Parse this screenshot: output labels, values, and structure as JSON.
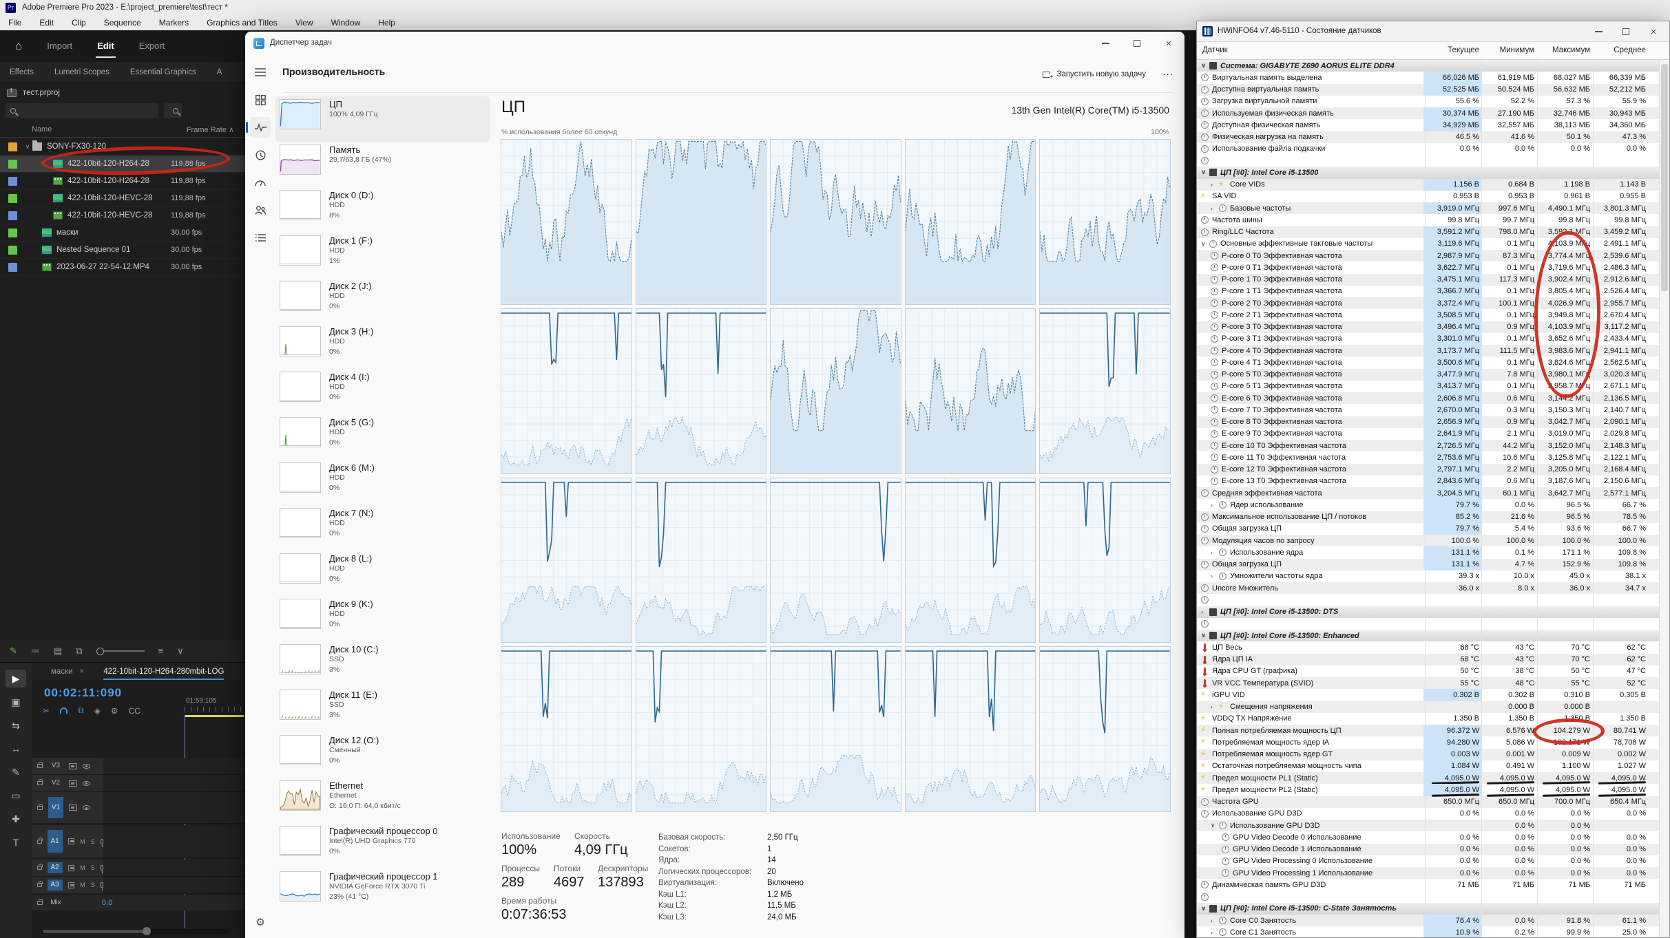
{
  "premiere": {
    "title": "Adobe Premiere Pro 2023 - E:\\project_premiere\\test\\тест *",
    "badge": "Pr",
    "menu": [
      "File",
      "Edit",
      "Clip",
      "Sequence",
      "Markers",
      "Graphics and Titles",
      "View",
      "Window",
      "Help"
    ],
    "workspace_tabs": [
      {
        "label": "Import"
      },
      {
        "label": "Edit",
        "active": 1
      },
      {
        "label": "Export"
      }
    ],
    "panel_tabs": [
      "Effects",
      "Lumetri Scopes",
      "Essential Graphics",
      "A"
    ],
    "project_name": "тест.prproj",
    "columns": {
      "name": "Name",
      "frame_rate": "Frame Rate"
    },
    "project_items": [
      {
        "chev": "∨",
        "color": "#e2a33d",
        "icon": "folder",
        "name": "SONY-FX30-120",
        "fps": ""
      },
      {
        "chev": "",
        "color": "#63c74c",
        "icon": "seq",
        "name": "422-10bit-120-H264-28",
        "fps": "119,88 fps",
        "i2": 1,
        "sel": 1
      },
      {
        "chev": "",
        "color": "#6f8fd6",
        "icon": "clip",
        "name": "422-10bit-120-H264-28",
        "fps": "119,88 fps",
        "i2": 1
      },
      {
        "chev": "",
        "color": "#63c74c",
        "icon": "seq",
        "name": "422-10bit-120-HEVC-28",
        "fps": "119,88 fps",
        "i2": 1
      },
      {
        "chev": "",
        "color": "#6f8fd6",
        "icon": "clip",
        "name": "422-10bit-120-HEVC-28",
        "fps": "119,88 fps",
        "i2": 1
      },
      {
        "chev": "",
        "color": "#63c74c",
        "icon": "seq",
        "name": "маски",
        "fps": "30,00 fps",
        "i1": 1
      },
      {
        "chev": "",
        "color": "#63c74c",
        "icon": "seq",
        "name": "Nested Sequence 01",
        "fps": "30,00 fps",
        "i1": 1
      },
      {
        "chev": "",
        "color": "#6f8fd6",
        "icon": "clip",
        "name": "2023-06-27 22-54-12.MP4",
        "fps": "30,00 fps",
        "i1": 1
      }
    ],
    "timeline": {
      "tabs": [
        {
          "label": "маски",
          "close": "×"
        },
        {
          "label": "422-10bit-120-H264-280mbit-LOG"
        }
      ],
      "timecode": "00:02:11:090",
      "ruler_label": "01:59:105",
      "video_tracks": [
        "V3",
        "V2",
        "V1"
      ],
      "audio_tracks": [
        "A1",
        "A2",
        "A3"
      ],
      "mix_label": "Mix",
      "mix_value": "0,0",
      "mute_label": "M",
      "solo_label": "S"
    }
  },
  "taskman": {
    "title": "Диспетчер задач",
    "page_title": "Производительность",
    "run_task_label": "Запустить новую задачу",
    "more_label": "...",
    "sidebar": [
      {
        "name": "ЦП",
        "sub": [
          "100% 4,09 ГГц"
        ],
        "chart": "cpu",
        "sel": 1
      },
      {
        "name": "Память",
        "sub": [
          "29,7/63,8 ГБ (47%)"
        ],
        "chart": "mem"
      },
      {
        "name": "Диск 0 (D:)",
        "sub": [
          "HDD",
          "8%"
        ],
        "chart": "disk"
      },
      {
        "name": "Диск 1 (F:)",
        "sub": [
          "HDD",
          "1%"
        ],
        "chart": "disk"
      },
      {
        "name": "Диск 2 (J:)",
        "sub": [
          "HDD",
          "0%"
        ],
        "chart": "disk"
      },
      {
        "name": "Диск 3 (H:)",
        "sub": [
          "HDD",
          "0%"
        ],
        "chart": "diskspike"
      },
      {
        "name": "Диск 4 (I:)",
        "sub": [
          "HDD",
          "0%"
        ],
        "chart": "disk"
      },
      {
        "name": "Диск 5 (G:)",
        "sub": [
          "HDD",
          "0%"
        ],
        "chart": "diskspike"
      },
      {
        "name": "Диск 6 (M:)",
        "sub": [
          "HDD",
          "0%"
        ],
        "chart": "disk"
      },
      {
        "name": "Диск 7 (N:)",
        "sub": [
          "HDD",
          "0%"
        ],
        "chart": "disk"
      },
      {
        "name": "Диск 8 (L:)",
        "sub": [
          "HDD",
          "0%"
        ],
        "chart": "disk"
      },
      {
        "name": "Диск 9 (K:)",
        "sub": [
          "HDD",
          "0%"
        ],
        "chart": "disk"
      },
      {
        "name": "Диск 10 (C:)",
        "sub": [
          "SSD",
          "3%"
        ],
        "chart": "diskssd"
      },
      {
        "name": "Диск 11 (E:)",
        "sub": [
          "SSD",
          "3%"
        ],
        "chart": "diskssd"
      },
      {
        "name": "Диск 12 (O:)",
        "sub": [
          "Сменный",
          "0%"
        ],
        "chart": "disk"
      },
      {
        "name": "Ethernet",
        "sub": [
          "Ethernet",
          "О: 16,0 П: 64,0 кбит/с"
        ],
        "chart": "eth"
      },
      {
        "name": "Графический процессор 0",
        "sub": [
          "Intel(R) UHD Graphics 770",
          "0%"
        ],
        "chart": "disk"
      },
      {
        "name": "Графический процессор 1",
        "sub": [
          "NVIDIA GeForce RTX 3070 Ti",
          "23% (41 °C)"
        ],
        "chart": "gpu"
      }
    ],
    "cpu": {
      "title": "ЦП",
      "subtitle": "13th Gen Intel(R) Core(TM) i5-13500",
      "graph_label": "% использования более 60 секунд",
      "graph_max": "100%",
      "core_graph_styles": [
        "busy",
        "busy",
        "busy",
        "busy",
        "busy",
        "pinned",
        "pinned",
        "busy",
        "busy",
        "pinned",
        "pinned",
        "pinned",
        "pinned",
        "pinned",
        "pinned",
        "pinned",
        "pinned",
        "pinned",
        "pinned",
        "pinned"
      ],
      "stats": [
        {
          "label": "Использование",
          "value": "100%"
        },
        {
          "label": "Скорость",
          "value": "4,09 ГГц"
        },
        {
          "label": "Процессы",
          "value": "289"
        },
        {
          "label": "Потоки",
          "value": "4697"
        },
        {
          "label": "Дескрипторы",
          "value": "137893"
        },
        {
          "label": "Время работы",
          "value": "0:07:36:53"
        }
      ],
      "details": [
        {
          "label": "Базовая скорость:",
          "value": "2,50 ГГц"
        },
        {
          "label": "Сокетов:",
          "value": "1"
        },
        {
          "label": "Ядра:",
          "value": "14"
        },
        {
          "label": "Логических процессоров:",
          "value": "20"
        },
        {
          "label": "Виртуализация:",
          "value": "Включено"
        },
        {
          "label": "Кэш L1:",
          "value": "1,2 МБ"
        },
        {
          "label": "Кэш L2:",
          "value": "11,5 МБ"
        },
        {
          "label": "Кэш L3:",
          "value": "24,0 МБ"
        }
      ]
    }
  },
  "hwinfo": {
    "title": "HWiNFO64 v7.46-5110 - Состояние датчиков",
    "columns": [
      "Датчик",
      "Текущее",
      "Минимум",
      "Максимум",
      "Среднее"
    ],
    "rows": [
      {
        "sec": 1,
        "ch": "∨",
        "l": "Система: GIGABYTE Z690 AORUS ELITE DDR4"
      },
      {
        "l": "Виртуальная память выделена",
        "c": "66,026 МБ",
        "m": "61,919 МБ",
        "x": "68,027 МБ",
        "a": "66,339 МБ",
        "hl": 1
      },
      {
        "l": "Доступна виртуальная память",
        "c": "52,525 МБ",
        "m": "50,524 МБ",
        "x": "56,632 МБ",
        "a": "52,212 МБ",
        "hl": 1
      },
      {
        "l": "Загрузка виртуальной памяти",
        "c": "55.6 %",
        "m": "52.2 %",
        "x": "57.3 %",
        "a": "55.9 %"
      },
      {
        "l": "Используемая физическая память",
        "c": "30,374 МБ",
        "m": "27,190 МБ",
        "x": "32,746 МБ",
        "a": "30,943 МБ",
        "hl": 1
      },
      {
        "l": "Доступная физическая память",
        "c": "34,929 МБ",
        "m": "32,557 МБ",
        "x": "38,113 МБ",
        "a": "34,360 МБ",
        "hl": 1
      },
      {
        "l": "Физическая нагрузка на память",
        "c": "46.5 %",
        "m": "41.6 %",
        "x": "50.1 %",
        "a": "47.3 %"
      },
      {
        "l": "Использование файла подкачки",
        "c": "0.0 %",
        "m": "0.0 %",
        "x": "0.0 %",
        "a": "0.0 %"
      },
      {
        "gap": 1
      },
      {
        "sec": 1,
        "ch": "∨",
        "l": "ЦП [#0]: Intel Core i5-13500"
      },
      {
        "l": "Core VIDs",
        "ch": "›",
        "b": 1,
        "i1": 1,
        "c": "1.156 В",
        "m": "0.684 В",
        "x": "1.198 В",
        "a": "1.143 В",
        "hl": 1
      },
      {
        "l": "SA VID",
        "b": 1,
        "c": "0.953 В",
        "m": "0.953 В",
        "x": "0.961 В",
        "a": "0.955 В"
      },
      {
        "l": "Базовые частоты",
        "ch": "›",
        "i1": 1,
        "c": "3,919.0 МГц",
        "m": "997.6 МГц",
        "x": "4,490.1 МГц",
        "a": "3,801.3 МГц",
        "hl": 1
      },
      {
        "l": "Частота шины",
        "c": "99.8 МГц",
        "m": "99.7 МГц",
        "x": "99.8 МГц",
        "a": "99.8 МГц"
      },
      {
        "l": "Ring/LLC Частота",
        "c": "3,591.2 МГц",
        "m": "798.0 МГц",
        "x": "3,592.1 МГц",
        "a": "3,459.2 МГц",
        "hl": 1
      },
      {
        "l": "Основные эффективные тактовые частоты",
        "ch": "∨",
        "c": "3,119.6 МГц",
        "m": "0.1 МГц",
        "x": "4,103.9 МГц",
        "a": "2,491.1 МГц",
        "hl": 1
      },
      {
        "l": "P-core 0 T0 Эффективная частота",
        "i1": 1,
        "c": "2,987.9 МГц",
        "m": "87.3 МГц",
        "x": "3,774.4 МГц",
        "a": "2,539.6 МГц",
        "hl": 1
      },
      {
        "l": "P-core 0 T1 Эффективная частота",
        "i1": 1,
        "c": "3,622.7 МГц",
        "m": "0.1 МГц",
        "x": "3,719.6 МГц",
        "a": "2,486.3 МГц",
        "hl": 1
      },
      {
        "l": "P-core 1 T0 Эффективная частота",
        "i1": 1,
        "c": "3,475.1 МГц",
        "m": "117.3 МГц",
        "x": "3,902.4 МГц",
        "a": "2,912.6 МГц",
        "hl": 1
      },
      {
        "l": "P-core 1 T1 Эффективная частота",
        "i1": 1,
        "c": "3,366.7 МГц",
        "m": "0.1 МГц",
        "x": "3,805.4 МГц",
        "a": "2,526.4 МГц",
        "hl": 1
      },
      {
        "l": "P-core 2 T0 Эффективная частота",
        "i1": 1,
        "c": "3,372.4 МГц",
        "m": "100.1 МГц",
        "x": "4,026.9 МГц",
        "a": "2,955.7 МГц",
        "hl": 1
      },
      {
        "l": "P-core 2 T1 Эффективная частота",
        "i1": 1,
        "c": "3,508.5 МГц",
        "m": "0.1 МГц",
        "x": "3,949.8 МГц",
        "a": "2,670.4 МГц",
        "hl": 1
      },
      {
        "l": "P-core 3 T0 Эффективная частота",
        "i1": 1,
        "c": "3,496.4 МГц",
        "m": "0.9 МГц",
        "x": "4,103.9 МГц",
        "a": "3,117.2 МГц",
        "hl": 1
      },
      {
        "l": "P-core 3 T1 Эффективная частота",
        "i1": 1,
        "c": "3,301.0 МГц",
        "m": "0.1 МГц",
        "x": "3,652.6 МГц",
        "a": "2,433.4 МГц",
        "hl": 1
      },
      {
        "l": "P-core 4 T0 Эффективная частота",
        "i1": 1,
        "c": "3,173.7 МГц",
        "m": "111.5 МГц",
        "x": "3,983.6 МГц",
        "a": "2,941.1 МГц",
        "hl": 1
      },
      {
        "l": "P-core 4 T1 Эффективная частота",
        "i1": 1,
        "c": "3,500.6 МГц",
        "m": "0.1 МГц",
        "x": "3,824.6 МГц",
        "a": "2,562.5 МГц",
        "hl": 1
      },
      {
        "l": "P-core 5 T0 Эффективная частота",
        "i1": 1,
        "c": "3,477.9 МГц",
        "m": "7.8 МГц",
        "x": "3,980.1 МГц",
        "a": "3,020.3 МГц",
        "hl": 1
      },
      {
        "l": "P-core 5 T1 Эффективная частота",
        "i1": 1,
        "c": "3,413.7 МГц",
        "m": "0.1 МГц",
        "x": "3,958.7 МГц",
        "a": "2,671.1 МГц",
        "hl": 1
      },
      {
        "l": "E-core 6 T0 Эффективная частота",
        "i1": 1,
        "c": "2,606.8 МГц",
        "m": "0.6 МГц",
        "x": "3,144.2 МГц",
        "a": "2,136.5 МГц",
        "hl": 1
      },
      {
        "l": "E-core 7 T0 Эффективная частота",
        "i1": 1,
        "c": "2,670.0 МГц",
        "m": "0.3 МГц",
        "x": "3,150.3 МГц",
        "a": "2,140.7 МГц",
        "hl": 1
      },
      {
        "l": "E-core 8 T0 Эффективная частота",
        "i1": 1,
        "c": "2,656.9 МГц",
        "m": "0.9 МГц",
        "x": "3,042.7 МГц",
        "a": "2,090.1 МГц",
        "hl": 1
      },
      {
        "l": "E-core 9 T0 Эффективная частота",
        "i1": 1,
        "c": "2,641.9 МГц",
        "m": "2.1 МГц",
        "x": "3,019.0 МГц",
        "a": "2,029.8 МГц",
        "hl": 1
      },
      {
        "l": "E-core 10 T0 Эффективная частота",
        "i1": 1,
        "c": "2,726.5 МГц",
        "m": "44.2 МГц",
        "x": "3,152.0 МГц",
        "a": "2,148.3 МГц",
        "hl": 1
      },
      {
        "l": "E-core 11 T0 Эффективная частота",
        "i1": 1,
        "c": "2,753.6 МГц",
        "m": "10.6 МГц",
        "x": "3,125.8 МГц",
        "a": "2,122.1 МГц",
        "hl": 1
      },
      {
        "l": "E-core 12 T0 Эффективная частота",
        "i1": 1,
        "c": "2,797.1 МГц",
        "m": "2.2 МГц",
        "x": "3,205.0 МГц",
        "a": "2,168.4 МГц",
        "hl": 1
      },
      {
        "l": "E-core 13 T0 Эффективная частота",
        "i1": 1,
        "c": "2,843.6 МГц",
        "m": "0.6 МГц",
        "x": "3,187.6 МГц",
        "a": "2,150.6 МГц",
        "hl": 1
      },
      {
        "l": "Средняя эффективная частота",
        "c": "3,204.5 МГц",
        "m": "60.1 МГц",
        "x": "3,642.7 МГц",
        "a": "2,577.1 МГц",
        "hl": 1
      },
      {
        "l": "Ядер использование",
        "ch": "›",
        "i1": 1,
        "c": "79.7 %",
        "m": "0.0 %",
        "x": "96.5 %",
        "a": "66.7 %",
        "hl": 1
      },
      {
        "l": "Максимальное использование ЦП / потоков",
        "c": "85.2 %",
        "m": "21.6 %",
        "x": "96.5 %",
        "a": "78.5 %",
        "hl": 1
      },
      {
        "l": "Общая загрузка ЦП",
        "c": "79.7 %",
        "m": "5.4 %",
        "x": "93.6 %",
        "a": "66.7 %",
        "hl": 1
      },
      {
        "l": "Модуляция часов по запросу",
        "c": "100.0 %",
        "m": "100.0 %",
        "x": "100.0 %",
        "a": "100.0 %"
      },
      {
        "l": "Использование ядра",
        "ch": "›",
        "i1": 1,
        "c": "131.1 %",
        "m": "0.1 %",
        "x": "171.1 %",
        "a": "109.8 %",
        "hl": 1
      },
      {
        "l": "Общая загрузка ЦП",
        "c": "131.1 %",
        "m": "4.7 %",
        "x": "152.9 %",
        "a": "109.8 %",
        "hl": 1
      },
      {
        "l": "Умножители частоты ядра",
        "ch": "›",
        "i1": 1,
        "c": "39.3 x",
        "m": "10.0 x",
        "x": "45.0 x",
        "a": "38.1 x"
      },
      {
        "l": "Uncore Множитель",
        "c": "36.0 x",
        "m": "8.0 x",
        "x": "36.0 x",
        "a": "34.7 x"
      },
      {
        "gap": 1
      },
      {
        "sec": 1,
        "ch": "›",
        "l": "ЦП [#0]: Intel Core i5-13500: DTS"
      },
      {
        "gap": 1
      },
      {
        "sec": 1,
        "ch": "∨",
        "l": "ЦП [#0]: Intel Core i5-13500: Enhanced"
      },
      {
        "l": "ЦП Весь",
        "t": 1,
        "c": "68 °C",
        "m": "43 °C",
        "x": "70 °C",
        "a": "62 °C"
      },
      {
        "l": "Ядра ЦП IA",
        "t": 1,
        "c": "68 °C",
        "m": "43 °C",
        "x": "70 °C",
        "a": "62 °C"
      },
      {
        "l": "Ядра CPU GT (графика)",
        "t": 1,
        "c": "50 °C",
        "m": "38 °C",
        "x": "50 °C",
        "a": "47 °C"
      },
      {
        "l": "VR VCC Температура (SVID)",
        "t": 1,
        "c": "55 °C",
        "m": "48 °C",
        "x": "55 °C",
        "a": "52 °C"
      },
      {
        "l": "iGPU VID",
        "b": 1,
        "c": "0.302 В",
        "m": "0.302 В",
        "x": "0.310 В",
        "a": "0.305 В",
        "hl": 1
      },
      {
        "l": "Смещения напряжения",
        "ch": "›",
        "b": 1,
        "i1": 1,
        "c": "",
        "m": "0.000 В",
        "x": "0.000 В",
        "a": ""
      },
      {
        "l": "VDDQ TX Напряжение",
        "b": 1,
        "c": "1.350 В",
        "m": "1.350 В",
        "x": "1.350 В",
        "a": "1.350 В"
      },
      {
        "l": "Полная потребляемая мощность ЦП",
        "b": 1,
        "c": "96.372 W",
        "m": "6.576 W",
        "x": "104.279 W",
        "a": "80.741 W",
        "hl": 1
      },
      {
        "l": "Потребляемая мощность ядер IA",
        "b": 1,
        "c": "94.280 W",
        "m": "5.086 W",
        "x": "102.171 W",
        "a": "78.708 W",
        "hl": 1
      },
      {
        "l": "Потребляемая мощность ядер GT",
        "b": 1,
        "c": "0.003 W",
        "m": "0.001 W",
        "x": "0.009 W",
        "a": "0.002 W",
        "hl": 1
      },
      {
        "l": "Остаточная потребляемая мощность чипа",
        "b": 1,
        "c": "1.084 W",
        "m": "0.491 W",
        "x": "1.100 W",
        "a": "1.027 W",
        "hl": 1
      },
      {
        "l": "Предел мощности PL1 (Static)",
        "b": 1,
        "c": "4,095.0 W",
        "m": "4,095.0 W",
        "x": "4,095.0 W",
        "a": "4,095.0 W",
        "hl": 1,
        "ul": 1
      },
      {
        "l": "Предел мощности PL2 (Static)",
        "b": 1,
        "c": "4,095.0 W",
        "m": "4,095.0 W",
        "x": "4,095.0 W",
        "a": "4,095.0 W",
        "hl": 1,
        "ul": 1
      },
      {
        "l": "Частота GPU",
        "c": "650.0 МГц",
        "m": "650.0 МГц",
        "x": "700.0 МГц",
        "a": "650.4 МГц"
      },
      {
        "l": "Использование GPU D3D",
        "c": "0.0 %",
        "m": "0.0 %",
        "x": "0.0 %",
        "a": "0.0 %"
      },
      {
        "l": "Использование GPU D3D",
        "ch": "∨",
        "i1": 1,
        "c": "",
        "m": "0.0 %",
        "x": "0.0 %",
        "a": ""
      },
      {
        "l": "GPU Video Decode 0 Использование",
        "i2": 1,
        "c": "0.0 %",
        "m": "0.0 %",
        "x": "0.0 %",
        "a": "0.0 %"
      },
      {
        "l": "GPU Video Decode 1 Использование",
        "i2": 1,
        "c": "0.0 %",
        "m": "0.0 %",
        "x": "0.0 %",
        "a": "0.0 %"
      },
      {
        "l": "GPU Video Processing 0 Использование",
        "i2": 1,
        "c": "0.0 %",
        "m": "0.0 %",
        "x": "0.0 %",
        "a": "0.0 %"
      },
      {
        "l": "GPU Video Processing 1 Использование",
        "i2": 1,
        "c": "0.0 %",
        "m": "0.0 %",
        "x": "0.0 %",
        "a": "0.0 %"
      },
      {
        "l": "Динамическая память GPU D3D",
        "c": "71 МБ",
        "m": "71 МБ",
        "x": "71 МБ",
        "a": "71 МБ"
      },
      {
        "gap": 1
      },
      {
        "sec": 1,
        "ch": "∨",
        "l": "ЦП [#0]: Intel Core i5-13500: C-State Занятость"
      },
      {
        "l": "Core C0 Занятость",
        "ch": "›",
        "i1": 1,
        "c": "76.4 %",
        "m": "0.0 %",
        "x": "91.8 %",
        "a": "61.1 %",
        "hl": 1
      },
      {
        "l": "Core C1 Занятость",
        "ch": "›",
        "i1": 1,
        "c": "10.9 %",
        "m": "0.2 %",
        "x": "99.9 %",
        "a": "25.0 %",
        "hl": 1
      }
    ]
  },
  "annotation_color": "#ce2516"
}
